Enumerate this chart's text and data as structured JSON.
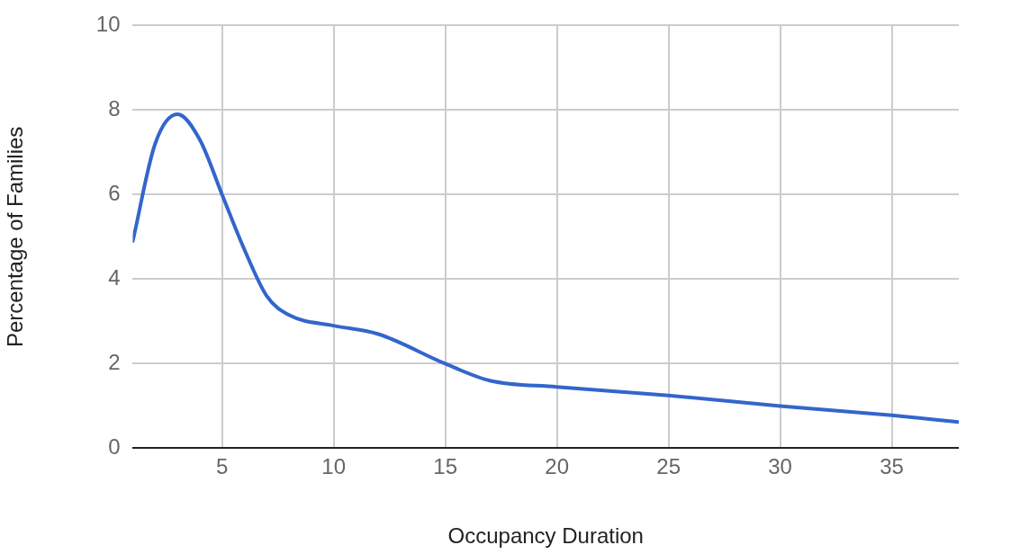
{
  "chart_data": {
    "type": "line",
    "xlabel": "Occupancy Duration",
    "ylabel": "Percentage of Families",
    "x": [
      1,
      2,
      3,
      4,
      5,
      6,
      7,
      8,
      10,
      12,
      15,
      17,
      20,
      25,
      30,
      35,
      38
    ],
    "series": [
      {
        "color": "#3366cc",
        "values": [
          4.9,
          7.2,
          7.9,
          7.3,
          6.0,
          4.7,
          3.6,
          3.15,
          2.9,
          2.7,
          2.0,
          1.6,
          1.45,
          1.25,
          1.0,
          0.78,
          0.62
        ]
      }
    ],
    "xlim": [
      1,
      38
    ],
    "xticks": [
      5,
      10,
      15,
      20,
      25,
      30,
      35
    ],
    "ylim": [
      0,
      10
    ],
    "yticks": [
      0,
      2,
      4,
      6,
      8,
      10
    ],
    "grid": true,
    "marker": "none"
  }
}
